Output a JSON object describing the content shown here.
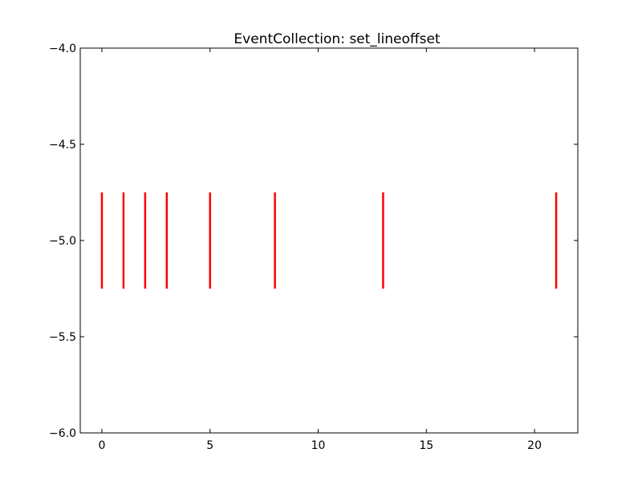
{
  "chart_data": {
    "type": "eventplot",
    "title": "EventCollection: set_lineoffset",
    "xlabel": "",
    "ylabel": "",
    "xlim": [
      -1,
      22
    ],
    "ylim": [
      -6.0,
      -4.0
    ],
    "x_ticks": [
      0,
      5,
      10,
      15,
      20
    ],
    "x_tick_labels": [
      "0",
      "5",
      "10",
      "15",
      "20"
    ],
    "y_ticks": [
      -4.0,
      -4.5,
      -5.0,
      -5.5,
      -6.0
    ],
    "y_tick_labels": [
      "−4.0",
      "−4.5",
      "−5.0",
      "−5.5",
      "−6.0"
    ],
    "grid": false,
    "series": [
      {
        "events": [
          0,
          1,
          2,
          3,
          5,
          8,
          13,
          21
        ],
        "lineoffset": -5.0,
        "linelength": 0.5,
        "color": "#ff0000"
      }
    ]
  }
}
